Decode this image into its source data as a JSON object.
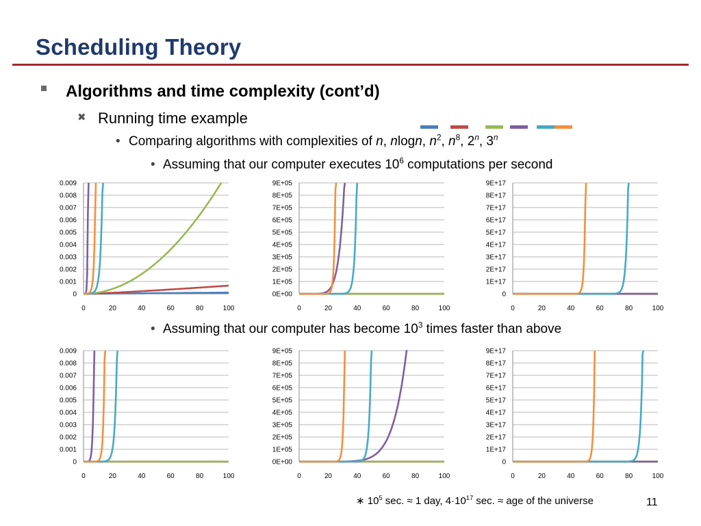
{
  "title": "Scheduling Theory",
  "bullets": {
    "l1": "Algorithms and time complexity (cont’d)",
    "l2": "Running time example",
    "l3_prefix": "Comparing algorithms with complexities of ",
    "l4_prefix": "Assuming that our computer executes 10",
    "l4_sup": "6",
    "l4_suffix": " computations per second",
    "l5_prefix": "Assuming that our computer has become 10",
    "l5_sup": "3",
    "l5_suffix": " times faster than above"
  },
  "complexities": [
    {
      "text": "n",
      "sup": "",
      "italic": true
    },
    {
      "text": "n",
      "sup": "",
      "italic": true,
      "mid": "log",
      "text2": "n"
    },
    {
      "text": "n",
      "sup": "2",
      "italic": true
    },
    {
      "text": "n",
      "sup": "8",
      "italic": true
    },
    {
      "text": "2",
      "sup": "n",
      "italic": false
    },
    {
      "text": "3",
      "sup": "n",
      "italic": false
    }
  ],
  "colors": {
    "title": "#1f3a6b",
    "rule": "#a4282e",
    "n": "#4a7ebb",
    "nlogn": "#be4b48",
    "n2": "#98b954",
    "n8": "#7d5fa0",
    "two_n": "#46aac5",
    "three_n": "#f38f3d"
  },
  "legend_swatches": [
    "n",
    "nlogn",
    "n2",
    "n8",
    "two_n",
    "three_n"
  ],
  "footnote": {
    "star": "∗",
    "p1": " 10",
    "sup1": "5",
    "p2": " sec. ≈ 1 day, 4·10",
    "sup2": "17",
    "p3": " sec. ≈ age of the universe"
  },
  "page_number": "11",
  "chart_data": [
    {
      "type": "line",
      "row": "top",
      "col": 0,
      "speed_factor": 1,
      "yticks": [
        "0",
        "0.001",
        "0.002",
        "0.003",
        "0.004",
        "0.005",
        "0.006",
        "0.007",
        "0.008",
        "0.009"
      ],
      "ylim": [
        0,
        0.009
      ],
      "xlim": [
        0,
        100
      ],
      "xticks": [
        "0",
        "20",
        "40",
        "60",
        "80",
        "100"
      ],
      "series": [
        "n",
        "nlogn",
        "n2",
        "n8",
        "two_n",
        "three_n"
      ]
    },
    {
      "type": "line",
      "row": "top",
      "col": 1,
      "speed_factor": 1,
      "yticks": [
        "0E+00",
        "1E+05",
        "2E+05",
        "3E+05",
        "4E+05",
        "5E+05",
        "6E+05",
        "7E+05",
        "8E+05",
        "9E+05"
      ],
      "ylim": [
        0,
        900000
      ],
      "xlim": [
        0,
        100
      ],
      "xticks": [
        "0",
        "20",
        "40",
        "60",
        "80",
        "100"
      ],
      "series": [
        "n",
        "nlogn",
        "n2",
        "n8",
        "two_n",
        "three_n"
      ]
    },
    {
      "type": "line",
      "row": "top",
      "col": 2,
      "speed_factor": 1,
      "yticks": [
        "0",
        "1E+17",
        "2E+17",
        "3E+17",
        "4E+17",
        "5E+17",
        "6E+17",
        "7E+17",
        "8E+17",
        "9E+17"
      ],
      "ylim": [
        0,
        9e+17
      ],
      "xlim": [
        0,
        100
      ],
      "xticks": [
        "0",
        "20",
        "40",
        "60",
        "80",
        "100"
      ],
      "series": [
        "n",
        "nlogn",
        "n2",
        "n8",
        "two_n",
        "three_n"
      ]
    },
    {
      "type": "line",
      "row": "bottom",
      "col": 0,
      "speed_factor": 1000,
      "yticks": [
        "0",
        "0.001",
        "0.002",
        "0.003",
        "0.004",
        "0.005",
        "0.006",
        "0.007",
        "0.008",
        "0.009"
      ],
      "ylim": [
        0,
        0.009
      ],
      "xlim": [
        0,
        100
      ],
      "xticks": [
        "0",
        "20",
        "40",
        "60",
        "80",
        "100"
      ],
      "series": [
        "n",
        "nlogn",
        "n2",
        "n8",
        "two_n",
        "three_n"
      ]
    },
    {
      "type": "line",
      "row": "bottom",
      "col": 1,
      "speed_factor": 1000,
      "yticks": [
        "0E+00",
        "1E+05",
        "2E+05",
        "3E+05",
        "4E+05",
        "5E+05",
        "6E+05",
        "7E+05",
        "8E+05",
        "9E+05"
      ],
      "ylim": [
        0,
        900000
      ],
      "xlim": [
        0,
        100
      ],
      "xticks": [
        "0",
        "20",
        "40",
        "60",
        "80",
        "100"
      ],
      "series": [
        "n",
        "nlogn",
        "n2",
        "n8",
        "two_n",
        "three_n"
      ]
    },
    {
      "type": "line",
      "row": "bottom",
      "col": 2,
      "speed_factor": 1000,
      "yticks": [
        "0",
        "1E+17",
        "2E+17",
        "3E+17",
        "4E+17",
        "5E+17",
        "6E+17",
        "7E+17",
        "8E+17",
        "9E+17"
      ],
      "ylim": [
        0,
        9e+17
      ],
      "xlim": [
        0,
        100
      ],
      "xticks": [
        "0",
        "20",
        "40",
        "60",
        "80",
        "100"
      ],
      "series": [
        "n",
        "nlogn",
        "n2",
        "n8",
        "two_n",
        "three_n"
      ]
    }
  ]
}
